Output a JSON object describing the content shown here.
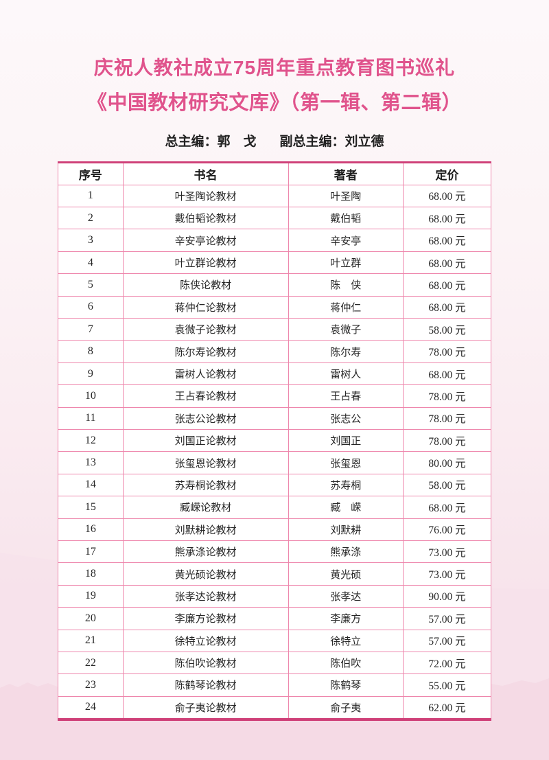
{
  "colors": {
    "accent": "#e0538c",
    "border": "#ee86ac",
    "border-strong": "#cf4078",
    "text": "#222222"
  },
  "header": {
    "title": "庆祝人教社成立75周年重点教育图书巡礼",
    "subtitle": "《中国教材研究文库》（第一辑、第二辑）",
    "editor_chief": "总主编：郭　戈",
    "editor_deputy": "副总主编：刘立德"
  },
  "table": {
    "headers": [
      "序号",
      "书名",
      "著者",
      "定价"
    ],
    "rows": [
      [
        "1",
        "叶圣陶论教材",
        "叶圣陶",
        "68.00 元"
      ],
      [
        "2",
        "戴伯韬论教材",
        "戴伯韬",
        "68.00 元"
      ],
      [
        "3",
        "辛安亭论教材",
        "辛安亭",
        "68.00 元"
      ],
      [
        "4",
        "叶立群论教材",
        "叶立群",
        "68.00 元"
      ],
      [
        "5",
        "陈侠论教材",
        "陈　侠",
        "68.00 元"
      ],
      [
        "6",
        "蒋仲仁论教材",
        "蒋仲仁",
        "68.00 元"
      ],
      [
        "7",
        "袁微子论教材",
        "袁微子",
        "58.00 元"
      ],
      [
        "8",
        "陈尔寿论教材",
        "陈尔寿",
        "78.00 元"
      ],
      [
        "9",
        "雷树人论教材",
        "雷树人",
        "68.00 元"
      ],
      [
        "10",
        "王占春论教材",
        "王占春",
        "78.00 元"
      ],
      [
        "11",
        "张志公论教材",
        "张志公",
        "78.00 元"
      ],
      [
        "12",
        "刘国正论教材",
        "刘国正",
        "78.00 元"
      ],
      [
        "13",
        "张玺恩论教材",
        "张玺恩",
        "80.00 元"
      ],
      [
        "14",
        "苏寿桐论教材",
        "苏寿桐",
        "58.00 元"
      ],
      [
        "15",
        "臧嵘论教材",
        "臧　嵘",
        "68.00 元"
      ],
      [
        "16",
        "刘默耕论教材",
        "刘默耕",
        "76.00 元"
      ],
      [
        "17",
        "熊承涤论教材",
        "熊承涤",
        "73.00 元"
      ],
      [
        "18",
        "黄光硕论教材",
        "黄光硕",
        "73.00 元"
      ],
      [
        "19",
        "张孝达论教材",
        "张孝达",
        "90.00 元"
      ],
      [
        "20",
        "李廉方论教材",
        "李廉方",
        "57.00 元"
      ],
      [
        "21",
        "徐特立论教材",
        "徐特立",
        "57.00 元"
      ],
      [
        "22",
        "陈伯吹论教材",
        "陈伯吹",
        "72.00 元"
      ],
      [
        "23",
        "陈鹤琴论教材",
        "陈鹤琴",
        "55.00 元"
      ],
      [
        "24",
        "俞子夷论教材",
        "俞子夷",
        "62.00 元"
      ]
    ],
    "cell_names": [
      "row-number",
      "book-title",
      "author",
      "price"
    ]
  }
}
